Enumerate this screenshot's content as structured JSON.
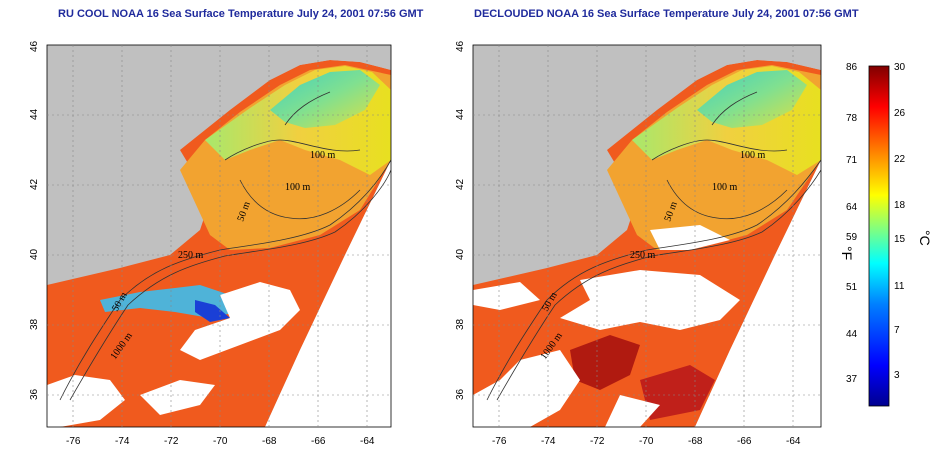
{
  "maps": [
    {
      "title": "RU COOL NOAA 16 Sea Surface Temperature July 24, 2001 07:56 GMT",
      "contour_labels": [
        "100 m",
        "100 m",
        "50 m",
        "250 m",
        "50 m",
        "1000 m"
      ]
    },
    {
      "title": "DECLOUDED NOAA 16 Sea Surface Temperature July 24, 2001 07:56 GMT",
      "contour_labels": [
        "100 m",
        "100 m",
        "50 m",
        "250 m",
        "50 m",
        "1000 m"
      ]
    }
  ],
  "x_ticks": [
    "-76",
    "-74",
    "-72",
    "-70",
    "-68",
    "-66",
    "-64"
  ],
  "y_ticks": [
    "36",
    "38",
    "40",
    "42",
    "44",
    "46"
  ],
  "colorbar": {
    "fahrenheit_ticks": [
      "86",
      "78",
      "71",
      "64",
      "59",
      "51",
      "44",
      "37"
    ],
    "celsius_ticks": [
      "30",
      "26",
      "22",
      "18",
      "15",
      "11",
      "7",
      "3"
    ],
    "fahrenheit_unit": "°F",
    "celsius_unit": "°C",
    "colors": [
      "#00008f",
      "#0000ff",
      "#0080ff",
      "#00ffff",
      "#80ff80",
      "#ffff00",
      "#ff8000",
      "#ff0000",
      "#800000"
    ]
  },
  "colors": {
    "land": "#c0c0c0",
    "no_data": "#ffffff",
    "title": "#1f2a9c"
  }
}
